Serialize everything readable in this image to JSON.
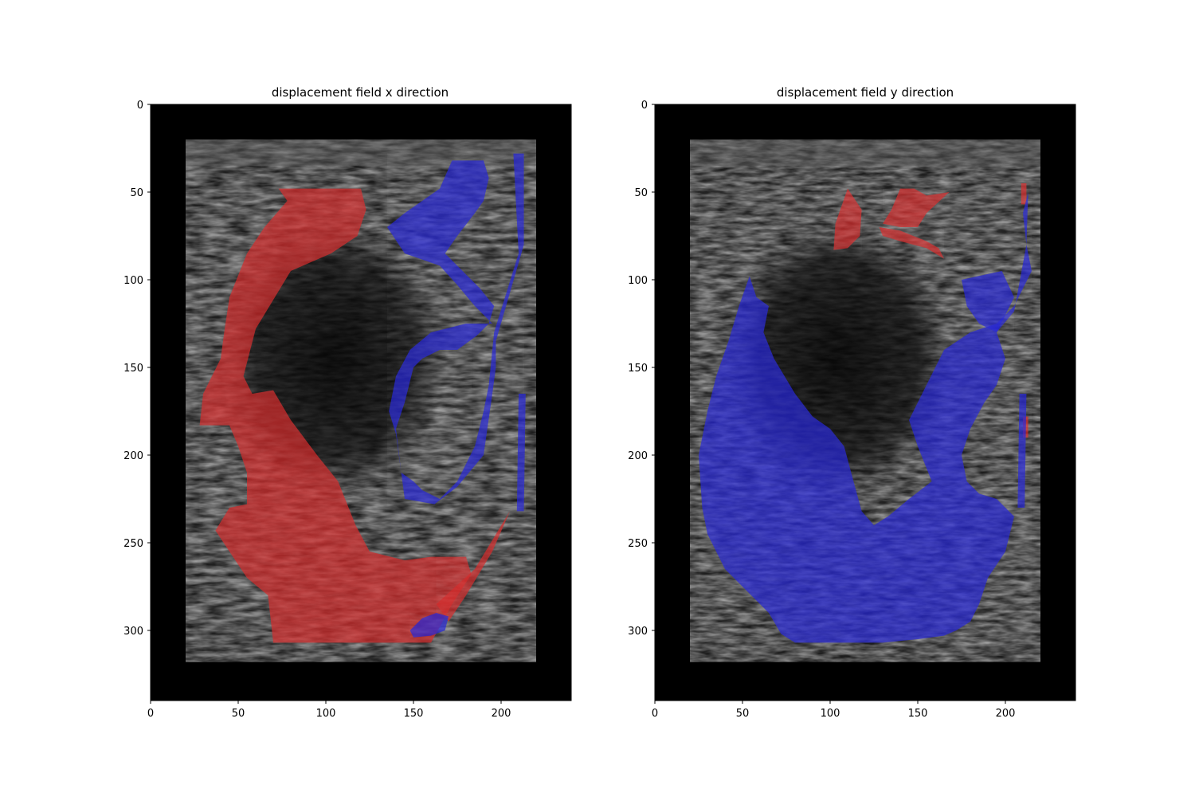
{
  "figure": {
    "panels": [
      {
        "id": "x",
        "title": "displacement field x direction",
        "xticks": [
          "0",
          "50",
          "100",
          "150",
          "200"
        ],
        "yticks": [
          "0",
          "50",
          "100",
          "150",
          "200",
          "250",
          "300"
        ]
      },
      {
        "id": "y",
        "title": "displacement field y direction",
        "xticks": [
          "0",
          "50",
          "100",
          "150",
          "200"
        ],
        "yticks": [
          "0",
          "50",
          "100",
          "150",
          "200",
          "250",
          "300"
        ]
      }
    ]
  },
  "chart_data": [
    {
      "type": "heatmap",
      "title": "displacement field x direction",
      "xlabel": "",
      "ylabel": "",
      "xlim": [
        0,
        240
      ],
      "ylim": [
        340,
        0
      ],
      "xticks": [
        0,
        50,
        100,
        150,
        200
      ],
      "yticks": [
        0,
        50,
        100,
        150,
        200,
        250,
        300
      ],
      "background": "grayscale ultrasound image",
      "overlay_colors": {
        "positive": "#d03030",
        "negative": "#2828c8"
      },
      "regions": [
        {
          "color": "red",
          "polygon": [
            [
              73,
              48
            ],
            [
              120,
              48
            ],
            [
              123,
              60
            ],
            [
              118,
              75
            ],
            [
              103,
              85
            ],
            [
              80,
              95
            ],
            [
              60,
              128
            ],
            [
              53,
              155
            ],
            [
              58,
              165
            ],
            [
              70,
              163
            ],
            [
              80,
              180
            ],
            [
              95,
              200
            ],
            [
              107,
              215
            ],
            [
              117,
              240
            ],
            [
              125,
              255
            ],
            [
              145,
              260
            ],
            [
              160,
              258
            ],
            [
              180,
              258
            ],
            [
              183,
              268
            ],
            [
              172,
              285
            ],
            [
              165,
              298
            ],
            [
              160,
              307
            ],
            [
              70,
              307
            ],
            [
              67,
              280
            ],
            [
              55,
              270
            ],
            [
              37,
              243
            ],
            [
              45,
              230
            ],
            [
              55,
              228
            ],
            [
              55,
              210
            ],
            [
              50,
              195
            ],
            [
              45,
              183
            ],
            [
              28,
              183
            ],
            [
              30,
              165
            ],
            [
              40,
              145
            ],
            [
              42,
              130
            ],
            [
              45,
              110
            ],
            [
              55,
              85
            ],
            [
              65,
              70
            ],
            [
              78,
              55
            ]
          ]
        },
        {
          "color": "red",
          "polygon": [
            [
              163,
              285
            ],
            [
              185,
              265
            ],
            [
              205,
              232
            ],
            [
              195,
              255
            ],
            [
              180,
              280
            ],
            [
              170,
              295
            ]
          ]
        },
        {
          "color": "blue",
          "polygon": [
            [
              172,
              32
            ],
            [
              190,
              32
            ],
            [
              193,
              42
            ],
            [
              190,
              55
            ],
            [
              185,
              62
            ],
            [
              175,
              75
            ],
            [
              168,
              85
            ],
            [
              178,
              95
            ],
            [
              188,
              105
            ],
            [
              196,
              115
            ],
            [
              193,
              125
            ],
            [
              186,
              132
            ],
            [
              175,
              140
            ],
            [
              165,
              140
            ],
            [
              155,
              145
            ],
            [
              150,
              150
            ],
            [
              145,
              170
            ],
            [
              140,
              185
            ],
            [
              143,
              210
            ],
            [
              150,
              215
            ],
            [
              155,
              220
            ],
            [
              165,
              225
            ],
            [
              175,
              215
            ],
            [
              185,
              195
            ],
            [
              190,
              175
            ],
            [
              193,
              160
            ],
            [
              196,
              130
            ],
            [
              210,
              85
            ],
            [
              207,
              28
            ],
            [
              213,
              28
            ],
            [
              213,
              80
            ],
            [
              197,
              135
            ],
            [
              197,
              150
            ],
            [
              195,
              165
            ],
            [
              190,
              200
            ],
            [
              175,
              218
            ],
            [
              162,
              228
            ],
            [
              145,
              225
            ],
            [
              143,
              210
            ],
            [
              140,
              188
            ],
            [
              136,
              175
            ],
            [
              140,
              155
            ],
            [
              148,
              140
            ],
            [
              160,
              130
            ],
            [
              180,
              125
            ],
            [
              195,
              125
            ],
            [
              185,
              115
            ],
            [
              175,
              103
            ],
            [
              165,
              92
            ],
            [
              145,
              85
            ],
            [
              135,
              70
            ],
            [
              145,
              62
            ],
            [
              155,
              55
            ],
            [
              165,
              48
            ]
          ]
        },
        {
          "color": "blue",
          "polygon": [
            [
              210,
              165
            ],
            [
              214,
              165
            ],
            [
              213,
              232
            ],
            [
              209,
              232
            ]
          ]
        },
        {
          "color": "blue",
          "polygon": [
            [
              148,
              300
            ],
            [
              155,
              293
            ],
            [
              163,
              290
            ],
            [
              170,
              292
            ],
            [
              168,
              300
            ],
            [
              160,
              303
            ],
            [
              150,
              304
            ]
          ]
        }
      ]
    },
    {
      "type": "heatmap",
      "title": "displacement field y direction",
      "xlabel": "",
      "ylabel": "",
      "xlim": [
        0,
        240
      ],
      "ylim": [
        340,
        0
      ],
      "xticks": [
        0,
        50,
        100,
        150,
        200
      ],
      "yticks": [
        0,
        50,
        100,
        150,
        200,
        250,
        300
      ],
      "background": "grayscale ultrasound image",
      "overlay_colors": {
        "positive": "#d03030",
        "negative": "#2828c8"
      },
      "regions": [
        {
          "color": "red",
          "polygon": [
            [
              110,
              48
            ],
            [
              118,
              60
            ],
            [
              117,
              75
            ],
            [
              110,
              82
            ],
            [
              102,
              83
            ],
            [
              103,
              68
            ]
          ]
        },
        {
          "color": "red",
          "polygon": [
            [
              140,
              48
            ],
            [
              148,
              48
            ],
            [
              155,
              52
            ],
            [
              168,
              50
            ],
            [
              155,
              62
            ],
            [
              150,
              70
            ],
            [
              140,
              70
            ],
            [
              130,
              68
            ],
            [
              135,
              60
            ]
          ]
        },
        {
          "color": "red",
          "polygon": [
            [
              128,
              70
            ],
            [
              140,
              72
            ],
            [
              155,
              78
            ],
            [
              162,
              82
            ],
            [
              165,
              88
            ],
            [
              155,
              82
            ],
            [
              140,
              78
            ],
            [
              130,
              75
            ]
          ]
        },
        {
          "color": "red",
          "polygon": [
            [
              209,
              45
            ],
            [
              212,
              45
            ],
            [
              212,
              57
            ],
            [
              209,
              57
            ]
          ]
        },
        {
          "color": "red",
          "polygon": [
            [
              210,
              178
            ],
            [
              213,
              178
            ],
            [
              213,
              190
            ],
            [
              210,
              190
            ]
          ]
        },
        {
          "color": "blue",
          "polygon": [
            [
              54,
              98
            ],
            [
              58,
              110
            ],
            [
              65,
              115
            ],
            [
              62,
              130
            ],
            [
              68,
              145
            ],
            [
              80,
              165
            ],
            [
              90,
              178
            ],
            [
              100,
              185
            ],
            [
              108,
              195
            ],
            [
              112,
              210
            ],
            [
              118,
              232
            ],
            [
              125,
              240
            ],
            [
              133,
              235
            ],
            [
              145,
              225
            ],
            [
              158,
              215
            ],
            [
              150,
              195
            ],
            [
              145,
              180
            ],
            [
              155,
              160
            ],
            [
              165,
              140
            ],
            [
              180,
              130
            ],
            [
              195,
              125
            ],
            [
              205,
              115
            ],
            [
              215,
              95
            ],
            [
              212,
              80
            ],
            [
              210,
              62
            ],
            [
              213,
              50
            ],
            [
              212,
              80
            ],
            [
              205,
              118
            ],
            [
              195,
              130
            ],
            [
              200,
              145
            ],
            [
              195,
              160
            ],
            [
              188,
              170
            ],
            [
              180,
              185
            ],
            [
              175,
              200
            ],
            [
              178,
              215
            ],
            [
              185,
              222
            ],
            [
              195,
              225
            ],
            [
              205,
              235
            ],
            [
              200,
              255
            ],
            [
              190,
              270
            ],
            [
              185,
              285
            ],
            [
              180,
              295
            ],
            [
              172,
              300
            ],
            [
              165,
              303
            ],
            [
              150,
              305
            ],
            [
              130,
              307
            ],
            [
              100,
              307
            ],
            [
              80,
              307
            ],
            [
              72,
              302
            ],
            [
              65,
              290
            ],
            [
              55,
              280
            ],
            [
              40,
              265
            ],
            [
              30,
              245
            ],
            [
              27,
              230
            ],
            [
              25,
              200
            ],
            [
              30,
              175
            ],
            [
              35,
              155
            ],
            [
              42,
              135
            ],
            [
              48,
              115
            ]
          ]
        },
        {
          "color": "blue",
          "polygon": [
            [
              175,
              100
            ],
            [
              198,
              95
            ],
            [
              205,
              110
            ],
            [
              200,
              120
            ],
            [
              195,
              130
            ],
            [
              185,
              125
            ],
            [
              178,
              115
            ]
          ]
        },
        {
          "color": "blue",
          "polygon": [
            [
              208,
              165
            ],
            [
              212,
              165
            ],
            [
              211,
              230
            ],
            [
              207,
              230
            ]
          ]
        }
      ]
    }
  ]
}
